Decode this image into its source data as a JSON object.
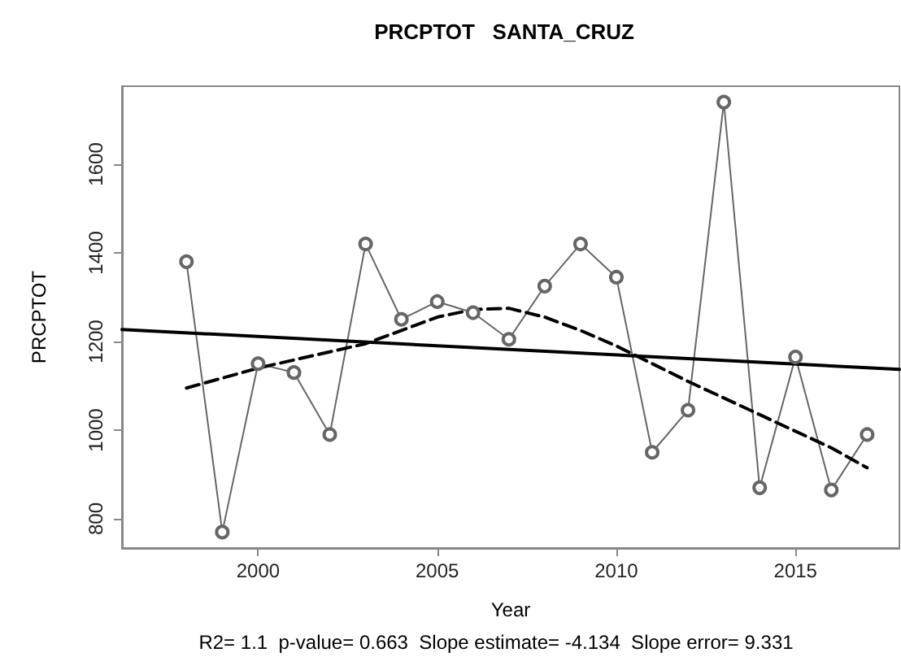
{
  "chart_data": {
    "type": "line",
    "title": "PRCPTOT   SANTA_CRUZ",
    "xlabel": "Year",
    "ylabel": "PRCPTOT",
    "annotations": [
      "R2= 1.1  p-value= 0.663  Slope estimate= -4.134  Slope error= 9.331"
    ],
    "x": [
      1998,
      1999,
      2000,
      2001,
      2002,
      2003,
      2004,
      2005,
      2006,
      2007,
      2008,
      2009,
      2010,
      2011,
      2012,
      2013,
      2014,
      2015,
      2016,
      2017
    ],
    "series": [
      {
        "color": "#666666",
        "marker": "circle",
        "line_style": "solid",
        "values": [
          1380,
          770,
          1150,
          1130,
          990,
          1420,
          1250,
          1290,
          1265,
          1205,
          1325,
          1420,
          1345,
          950,
          1045,
          1740,
          870,
          1165,
          865,
          990
        ]
      },
      {
        "color": "#000000",
        "marker": "none",
        "line_style": "solid",
        "x": [
          1996.2,
          2017.9
        ],
        "values": [
          1227,
          1137
        ]
      },
      {
        "color": "#000000",
        "marker": "none",
        "line_style": "dashed",
        "x": [
          1998,
          2000,
          2003,
          2005,
          2006,
          2007,
          2008,
          2009,
          2010,
          2012,
          2014,
          2016,
          2017
        ],
        "values": [
          1095,
          1140,
          1195,
          1255,
          1272,
          1275,
          1255,
          1225,
          1190,
          1110,
          1035,
          960,
          915
        ]
      }
    ],
    "xlim": [
      1996.2,
      2017.9
    ],
    "xticks": [
      2000,
      2005,
      2010,
      2015
    ],
    "ylim": [
      734,
      1776
    ],
    "yticks": [
      800,
      1000,
      1200,
      1400,
      1600
    ]
  }
}
